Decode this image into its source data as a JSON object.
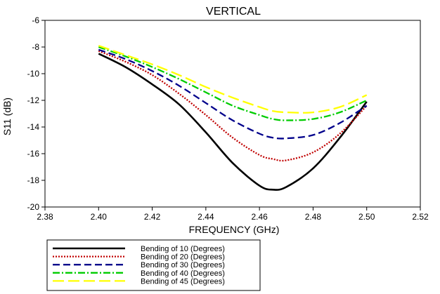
{
  "chart_data": {
    "type": "line",
    "title": "VERTICAL",
    "xlabel": "FREQUENCY (GHz)",
    "ylabel": "S11 (dB)",
    "xlim": [
      2.38,
      2.52
    ],
    "ylim": [
      -20,
      -6
    ],
    "x_ticks": [
      "2.38",
      "2.40",
      "2.42",
      "2.44",
      "2.46",
      "2.48",
      "2.50",
      "2.52"
    ],
    "y_ticks": [
      "-6",
      "-8",
      "-10",
      "-12",
      "-14",
      "-16",
      "-18",
      "-20"
    ],
    "grid": false,
    "legend_position": "bottom-left",
    "x": [
      2.4,
      2.41,
      2.42,
      2.43,
      2.44,
      2.45,
      2.46,
      2.465,
      2.47,
      2.48,
      2.49,
      2.5
    ],
    "series": [
      {
        "name": "Bending of 10 (Degrees)",
        "color": "#000000",
        "dash": "solid",
        "values": [
          -8.5,
          -9.5,
          -10.8,
          -12.3,
          -14.4,
          -16.7,
          -18.4,
          -18.7,
          -18.5,
          -17.1,
          -14.8,
          -12.1
        ]
      },
      {
        "name": "Bending of 20 (Degrees)",
        "color": "#c00000",
        "dash": "dot",
        "values": [
          -8.3,
          -9.1,
          -10.1,
          -11.5,
          -13.1,
          -14.8,
          -16.1,
          -16.4,
          -16.5,
          -15.9,
          -14.5,
          -12.4
        ]
      },
      {
        "name": "Bending of 30 (Degrees)",
        "color": "#00008b",
        "dash": "dash",
        "values": [
          -8.2,
          -8.9,
          -9.8,
          -10.9,
          -12.2,
          -13.5,
          -14.5,
          -14.8,
          -14.85,
          -14.6,
          -13.7,
          -12.4
        ]
      },
      {
        "name": "Bending of 40 (Degrees)",
        "color": "#00cc00",
        "dash": "dashdot",
        "values": [
          -8.0,
          -8.7,
          -9.5,
          -10.4,
          -11.4,
          -12.4,
          -13.1,
          -13.4,
          -13.5,
          -13.4,
          -12.9,
          -12.0
        ]
      },
      {
        "name": "Bending of 45 (Degrees)",
        "color": "#ffff00",
        "dash": "longdash",
        "values": [
          -7.9,
          -8.6,
          -9.3,
          -10.1,
          -11.0,
          -11.8,
          -12.5,
          -12.8,
          -12.9,
          -12.9,
          -12.5,
          -11.6
        ]
      }
    ]
  }
}
